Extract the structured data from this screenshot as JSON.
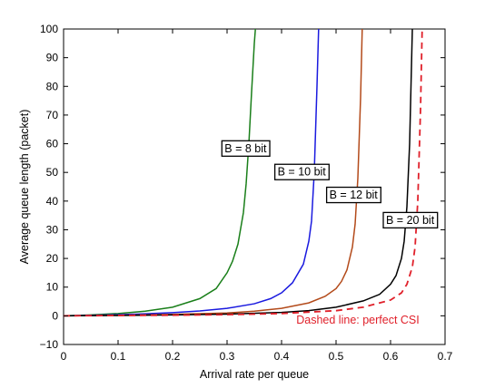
{
  "chart_data": {
    "type": "line",
    "title": "",
    "xlabel": "Arrival rate per queue",
    "ylabel": "Average queue length (packet)",
    "xlim": [
      0,
      0.7
    ],
    "ylim": [
      -10,
      100
    ],
    "xticks": [
      0,
      0.1,
      0.2,
      0.3,
      0.4,
      0.5,
      0.6,
      0.7
    ],
    "xtick_labels": [
      "0",
      "0.1",
      "0.2",
      "0.3",
      "0.4",
      "0.5",
      "0.6",
      "0.7"
    ],
    "yticks": [
      -10,
      0,
      10,
      20,
      30,
      40,
      50,
      60,
      70,
      80,
      90,
      100
    ],
    "ytick_labels": [
      "−10",
      "0",
      "10",
      "20",
      "30",
      "40",
      "50",
      "60",
      "70",
      "80",
      "90",
      "100"
    ],
    "grid": false,
    "legend": "none",
    "series": [
      {
        "name": "B = 8 bit",
        "color": "#1a7f1a",
        "style": "solid",
        "x": [
          0,
          0.05,
          0.1,
          0.15,
          0.2,
          0.25,
          0.28,
          0.3,
          0.31,
          0.32,
          0.33,
          0.335,
          0.34,
          0.345,
          0.35,
          0.352
        ],
        "y": [
          0,
          0.3,
          0.8,
          1.6,
          3.0,
          6.0,
          9.5,
          15,
          19,
          25,
          36,
          46,
          60,
          78,
          95,
          100
        ]
      },
      {
        "name": "B = 10 bit",
        "color": "#1a1adf",
        "style": "solid",
        "x": [
          0,
          0.05,
          0.1,
          0.15,
          0.2,
          0.25,
          0.3,
          0.35,
          0.38,
          0.4,
          0.42,
          0.44,
          0.45,
          0.455,
          0.46,
          0.465,
          0.468
        ],
        "y": [
          0,
          0.2,
          0.4,
          0.7,
          1.1,
          1.7,
          2.6,
          4.2,
          6.0,
          8.0,
          11.5,
          18,
          26,
          33,
          50,
          80,
          100
        ]
      },
      {
        "name": "B = 12 bit",
        "color": "#b34a1a",
        "style": "solid",
        "x": [
          0,
          0.1,
          0.2,
          0.3,
          0.35,
          0.4,
          0.45,
          0.48,
          0.5,
          0.51,
          0.52,
          0.53,
          0.535,
          0.54,
          0.545,
          0.548
        ],
        "y": [
          0,
          0.2,
          0.5,
          1.0,
          1.6,
          2.6,
          4.5,
          6.8,
          9.5,
          12,
          16,
          24,
          32,
          48,
          76,
          100
        ]
      },
      {
        "name": "B = 20 bit",
        "color": "#000000",
        "style": "solid",
        "x": [
          0,
          0.1,
          0.2,
          0.3,
          0.4,
          0.45,
          0.5,
          0.55,
          0.58,
          0.6,
          0.61,
          0.62,
          0.625,
          0.63,
          0.635,
          0.64
        ],
        "y": [
          0,
          0.1,
          0.3,
          0.6,
          1.2,
          1.8,
          3.0,
          5.2,
          7.5,
          11,
          14,
          20,
          26,
          38,
          60,
          100
        ]
      },
      {
        "name": "perfect CSI",
        "color": "#e0202a",
        "style": "dashed",
        "x": [
          0,
          0.1,
          0.2,
          0.3,
          0.4,
          0.5,
          0.55,
          0.6,
          0.62,
          0.63,
          0.64,
          0.645,
          0.65,
          0.655,
          0.658
        ],
        "y": [
          0,
          0.1,
          0.2,
          0.4,
          0.8,
          1.8,
          3.0,
          5.5,
          8.0,
          11,
          17,
          24,
          40,
          72,
          100
        ]
      }
    ],
    "annotations": [
      {
        "text": "B = 8 bit",
        "x": 0.334,
        "y": 58.5,
        "boxed": true
      },
      {
        "text": "B = 10 bit",
        "x": 0.437,
        "y": 50.3,
        "boxed": true
      },
      {
        "text": "B = 12 bit",
        "x": 0.532,
        "y": 42.3,
        "boxed": true
      },
      {
        "text": "B = 20 bit",
        "x": 0.636,
        "y": 33.5,
        "boxed": true
      },
      {
        "text": "Dashed line: perfect CSI",
        "x": 0.54,
        "y": -1.3,
        "boxed": false,
        "color": "#e0202a"
      }
    ]
  }
}
